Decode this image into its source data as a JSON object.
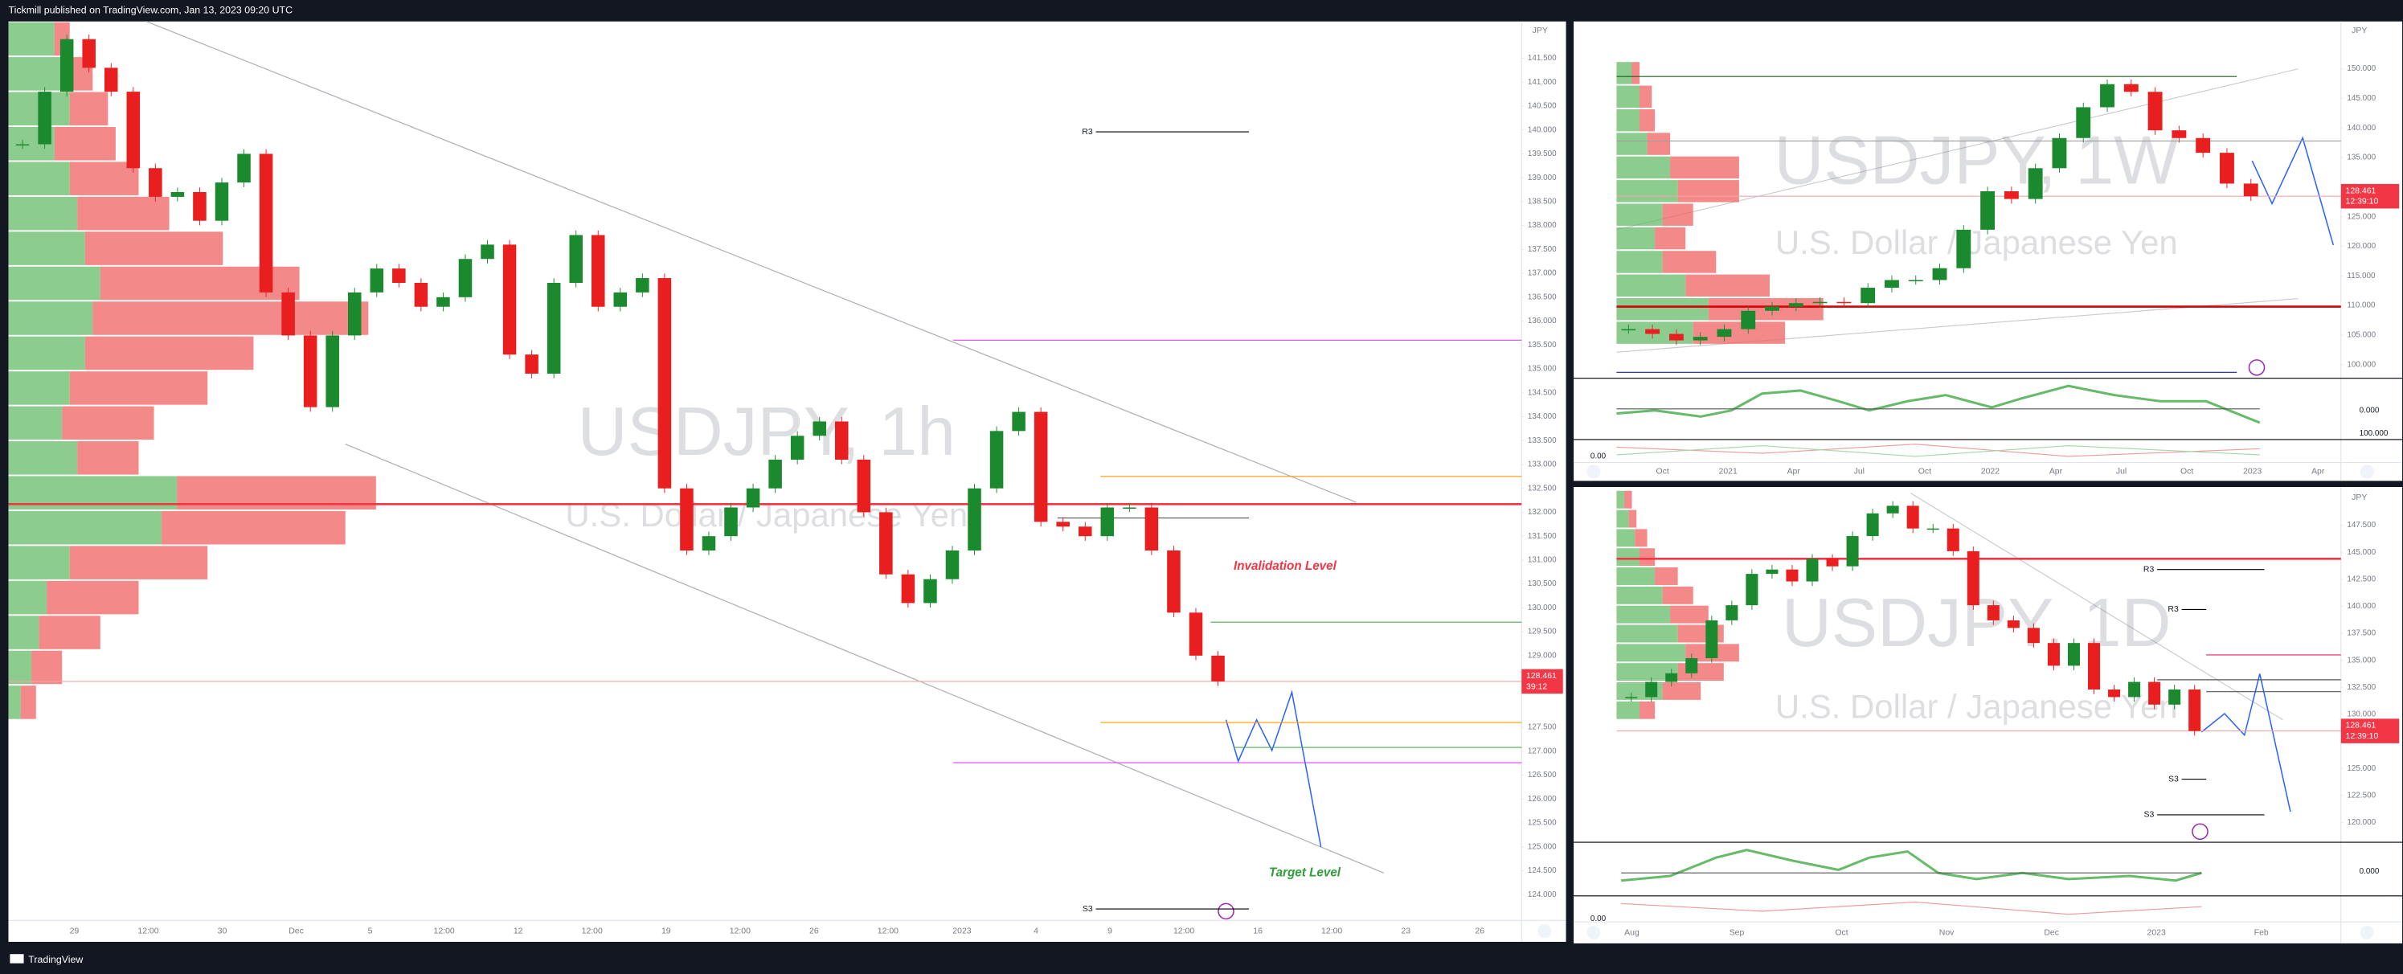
{
  "header": {
    "publisher": "Tickmill published on TradingView.com, Jan 13, 2023 09:20 UTC"
  },
  "footer": {
    "brand": "TradingView"
  },
  "panes": [
    {
      "watermark": "USDJPY, 1h",
      "subtitle": "U.S. Dollar / Japanese Yen",
      "currency": "JPY",
      "ylim": [
        123.46,
        142.27
      ],
      "yticks": [
        {
          "value": 141.5,
          "label": "141.500"
        },
        {
          "value": 141.0,
          "label": "141.000"
        },
        {
          "value": 140.5,
          "label": "140.500"
        },
        {
          "value": 140.0,
          "label": "140.000"
        },
        {
          "value": 139.5,
          "label": "139.500"
        },
        {
          "value": 139.0,
          "label": "139.000"
        },
        {
          "value": 138.5,
          "label": "138.500"
        },
        {
          "value": 138.0,
          "label": "138.000"
        },
        {
          "value": 137.5,
          "label": "137.500"
        },
        {
          "value": 137.0,
          "label": "137.000"
        },
        {
          "value": 136.5,
          "label": "136.500"
        },
        {
          "value": 136.0,
          "label": "136.000"
        },
        {
          "value": 135.5,
          "label": "135.500"
        },
        {
          "value": 135.0,
          "label": "135.000"
        },
        {
          "value": 134.5,
          "label": "134.500"
        },
        {
          "value": 134.0,
          "label": "134.000"
        },
        {
          "value": 133.5,
          "label": "133.500"
        },
        {
          "value": 133.0,
          "label": "133.000"
        },
        {
          "value": 132.5,
          "label": "132.500"
        },
        {
          "value": 132.0,
          "label": "132.000"
        },
        {
          "value": 131.5,
          "label": "131.500"
        },
        {
          "value": 131.0,
          "label": "131.000"
        },
        {
          "value": 130.5,
          "label": "130.500"
        },
        {
          "value": 130.0,
          "label": "130.000"
        },
        {
          "value": 129.5,
          "label": "129.500"
        },
        {
          "value": 129.0,
          "label": "129.000"
        },
        {
          "value": 127.5,
          "label": "127.500"
        },
        {
          "value": 127.0,
          "label": "127.000"
        },
        {
          "value": 126.5,
          "label": "126.500"
        },
        {
          "value": 126.0,
          "label": "126.000"
        },
        {
          "value": 125.5,
          "label": "125.500"
        },
        {
          "value": 125.0,
          "label": "125.000"
        },
        {
          "value": 124.5,
          "label": "124.500"
        },
        {
          "value": 124.0,
          "label": "124.000"
        }
      ],
      "time_labels": [
        "29",
        "12:00",
        "30",
        "Dec",
        "5",
        "12:00",
        "12",
        "12:00",
        "19",
        "12:00",
        "26",
        "12:00",
        "2023",
        "4",
        "9",
        "12:00",
        "16",
        "12:00",
        "23",
        "26"
      ],
      "closes": [
        139.7,
        140.8,
        141.9,
        141.3,
        140.8,
        139.2,
        138.6,
        138.7,
        138.1,
        138.9,
        139.5,
        136.6,
        135.7,
        134.2,
        135.7,
        136.6,
        137.1,
        136.8,
        136.3,
        136.5,
        137.3,
        137.6,
        135.3,
        134.9,
        136.8,
        137.8,
        136.3,
        136.6,
        136.9,
        132.5,
        131.2,
        131.5,
        132.1,
        132.5,
        133.1,
        133.6,
        133.9,
        133.1,
        132.0,
        130.7,
        130.1,
        130.6,
        131.2,
        132.5,
        133.7,
        134.1,
        131.8,
        131.7,
        131.5,
        132.1,
        132.1,
        131.2,
        129.9,
        129.0,
        128.461
      ],
      "volume_profile": [
        [
          30,
          10
        ],
        [
          35,
          20
        ],
        [
          40,
          25
        ],
        [
          30,
          40
        ],
        [
          40,
          45
        ],
        [
          45,
          60
        ],
        [
          50,
          90
        ],
        [
          60,
          130
        ],
        [
          55,
          180
        ],
        [
          50,
          110
        ],
        [
          40,
          90
        ],
        [
          35,
          60
        ],
        [
          45,
          40
        ],
        [
          110,
          130
        ],
        [
          100,
          120
        ],
        [
          40,
          90
        ],
        [
          25,
          60
        ],
        [
          20,
          40
        ],
        [
          15,
          20
        ],
        [
          8,
          10
        ]
      ],
      "levels": [
        {
          "price": 132.17,
          "color": "#f23645",
          "thick": true
        },
        {
          "price": 131.88,
          "color": "#555555"
        },
        {
          "price": 139.96,
          "color": "#000000",
          "label": "R3"
        },
        {
          "price": 123.7,
          "color": "#000000",
          "label": "S3"
        },
        {
          "price": 135.6,
          "color": "#e040fb"
        },
        {
          "price": 132.75,
          "color": "#ff9800"
        },
        {
          "price": 129.7,
          "color": "#4caf50"
        },
        {
          "price": 128.461,
          "color": "#f7a5a5"
        },
        {
          "price": 127.6,
          "color": "#ff9800"
        },
        {
          "price": 127.08,
          "color": "#4caf50"
        },
        {
          "price": 126.76,
          "color": "#e040fb"
        }
      ],
      "annotations": [
        {
          "text": "Invalidation Level",
          "color": "#f23645"
        },
        {
          "text": "Target Level",
          "color": "#2e9e3a"
        }
      ],
      "last": {
        "value": 128.461,
        "label": "128.461",
        "countdown": "39:12"
      }
    },
    {
      "watermark": "USDJPY, 1W",
      "subtitle": "U.S. Dollar / Japanese Yen",
      "currency": "JPY",
      "ylim": [
        97.7,
        158.0
      ],
      "yticks": [
        {
          "value": 150,
          "label": "150.000"
        },
        {
          "value": 145,
          "label": "145.000"
        },
        {
          "value": 140,
          "label": "140.000"
        },
        {
          "value": 135,
          "label": "135.000"
        },
        {
          "value": 125,
          "label": "125.000"
        },
        {
          "value": 120,
          "label": "120.000"
        },
        {
          "value": 115,
          "label": "115.000"
        },
        {
          "value": 110,
          "label": "110.000"
        },
        {
          "value": 105,
          "label": "105.000"
        },
        {
          "value": 100,
          "label": "100.000"
        }
      ],
      "time_labels": [
        "Oct",
        "2021",
        "Apr",
        "Jul",
        "Oct",
        "2022",
        "Apr",
        "Jul",
        "Oct",
        "2023",
        "Apr"
      ],
      "closes": [
        106,
        105.2,
        104.1,
        104.7,
        106,
        109.1,
        109.8,
        110.4,
        110.6,
        110.4,
        113,
        114.3,
        114.3,
        116.3,
        122.8,
        129.3,
        128,
        133.2,
        138.3,
        143.5,
        147.4,
        146.1,
        139.6,
        138.3,
        135.8,
        130.6,
        128.461
      ],
      "volume_profile": [
        [
          10,
          5
        ],
        [
          15,
          8
        ],
        [
          15,
          10
        ],
        [
          20,
          15
        ],
        [
          35,
          45
        ],
        [
          40,
          40
        ],
        [
          30,
          20
        ],
        [
          25,
          20
        ],
        [
          30,
          35
        ],
        [
          45,
          55
        ],
        [
          60,
          75
        ],
        [
          50,
          60
        ]
      ],
      "levels": [
        {
          "price": 148.7,
          "color": "#1b5e20"
        },
        {
          "price": 109.8,
          "color": "#d50000",
          "thick": true
        },
        {
          "price": 98.7,
          "color": "#1a237e"
        },
        {
          "price": 137.8,
          "color": "#9e9e9e"
        },
        {
          "price": 128.461,
          "color": "#f7a5a5"
        }
      ],
      "indicator_labels": [
        "0.000",
        "100.000",
        "0.00"
      ],
      "last": {
        "value": 128.461,
        "label": "128.461",
        "countdown": "12:39:10"
      }
    },
    {
      "watermark": "USDJPY, 1D",
      "subtitle": "U.S. Dollar / Japanese Yen",
      "currency": "JPY",
      "ylim": [
        118.16,
        151.04
      ],
      "yticks": [
        {
          "value": 147.5,
          "label": "147.500"
        },
        {
          "value": 145,
          "label": "145.000"
        },
        {
          "value": 142.5,
          "label": "142.500"
        },
        {
          "value": 140,
          "label": "140.000"
        },
        {
          "value": 137.5,
          "label": "137.500"
        },
        {
          "value": 135,
          "label": "135.000"
        },
        {
          "value": 132.5,
          "label": "132.500"
        },
        {
          "value": 130,
          "label": "130.000"
        },
        {
          "value": 125,
          "label": "125.000"
        },
        {
          "value": 122.5,
          "label": "122.500"
        },
        {
          "value": 120,
          "label": "120.000"
        }
      ],
      "time_labels": [
        "Aug",
        "Sep",
        "Oct",
        "Nov",
        "Dec",
        "2023",
        "Feb"
      ],
      "closes": [
        131.6,
        133,
        133.8,
        135.2,
        138.7,
        140.1,
        143,
        143.4,
        142.3,
        144.4,
        143.7,
        146.5,
        148.6,
        149.3,
        147.2,
        147.2,
        145.1,
        140.1,
        138.7,
        138,
        136.6,
        134.5,
        136.6,
        132.3,
        131.6,
        133,
        130.9,
        132.3,
        128.461
      ],
      "volume_profile": [
        [
          5,
          5
        ],
        [
          8,
          5
        ],
        [
          12,
          8
        ],
        [
          15,
          10
        ],
        [
          25,
          15
        ],
        [
          30,
          20
        ],
        [
          35,
          25
        ],
        [
          40,
          30
        ],
        [
          45,
          35
        ],
        [
          40,
          30
        ],
        [
          30,
          25
        ],
        [
          15,
          10
        ]
      ],
      "levels": [
        {
          "price": 144.4,
          "color": "#f23645",
          "thick": true
        },
        {
          "price": 143.4,
          "color": "#000000",
          "label": "R3"
        },
        {
          "price": 139.7,
          "color": "#000000",
          "label": "R3"
        },
        {
          "price": 124.0,
          "color": "#000000",
          "label": "S3"
        },
        {
          "price": 120.7,
          "color": "#000000",
          "label": "S3"
        },
        {
          "price": 135.5,
          "color": "#e91e63"
        },
        {
          "price": 133.2,
          "color": "#555555"
        },
        {
          "price": 132.1,
          "color": "#555555"
        },
        {
          "price": 128.461,
          "color": "#f7a5a5"
        }
      ],
      "indicator_labels": [
        "0.000",
        "0.00"
      ],
      "last": {
        "value": 128.461,
        "label": "128.461",
        "countdown": "12:39:10"
      }
    }
  ]
}
